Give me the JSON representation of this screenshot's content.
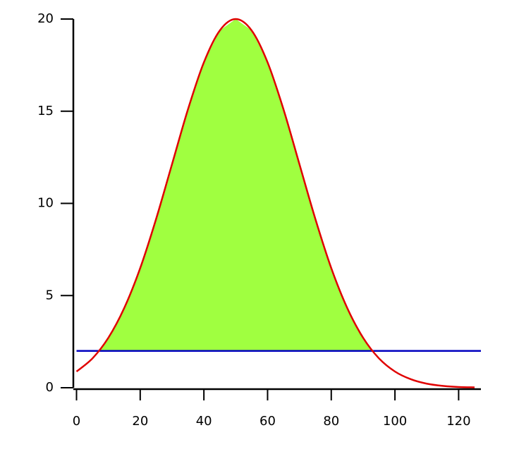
{
  "chart_data": {
    "type": "area-threshold",
    "series": [
      {
        "color": "#e00000",
        "fill": "#a0ff40",
        "x": [
          0,
          5,
          10,
          15,
          20,
          25,
          30,
          35,
          40,
          45,
          50,
          55,
          60,
          65,
          70,
          75,
          80,
          85,
          90,
          95,
          100,
          105,
          110,
          115,
          120,
          125
        ],
        "values": [
          0.88,
          1.59,
          2.71,
          4.33,
          6.49,
          9.16,
          12.13,
          15.1,
          17.65,
          19.38,
          20,
          19.38,
          17.65,
          15.1,
          12.13,
          9.16,
          6.49,
          4.33,
          2.71,
          1.59,
          0.88,
          0.46,
          0.22,
          0.1,
          0.04,
          0.02
        ]
      }
    ],
    "threshold": {
      "value": 2,
      "color": "#0000c0"
    },
    "xlim": [
      -1,
      127
    ],
    "ylim": [
      0,
      20
    ],
    "xticks": [
      0,
      20,
      40,
      60,
      80,
      100,
      120
    ],
    "yticks": [
      0,
      5,
      10,
      15,
      20
    ]
  }
}
